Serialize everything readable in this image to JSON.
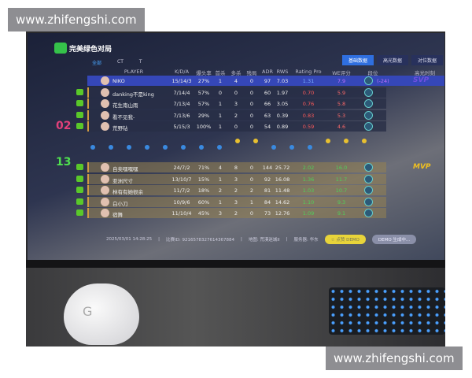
{
  "watermark": "www.zhifengshi.com",
  "logo": "完美绿色对局",
  "filters": [
    "全部",
    "CT",
    "T"
  ],
  "tabs": [
    "基础数据",
    "高光数据",
    "对位数据"
  ],
  "columns": [
    "PLAYER",
    "K/D/A",
    "爆头率",
    "首杀",
    "多杀",
    "残局",
    "ADR",
    "RWS",
    "Rating Pro",
    "WE评分",
    "段位",
    "高光时刻"
  ],
  "team1_score": "02",
  "team2_score": "13",
  "team1": [
    {
      "name": "NIKO",
      "kda": "15/14/3",
      "hs": "27%",
      "fk": "1",
      "mk": "4",
      "cl": "0",
      "adr": "97",
      "rws": "7.03",
      "rating": "1.31",
      "we": "7.9",
      "rank_delta": "(-24)",
      "highlight": "SVP"
    },
    {
      "name": "danking不是king",
      "kda": "7/14/4",
      "hs": "57%",
      "fk": "0",
      "mk": "0",
      "cl": "0",
      "adr": "60",
      "rws": "1.97",
      "rating": "0.70",
      "we": "5.9",
      "rank_delta": "",
      "highlight": ""
    },
    {
      "name": "花生南山雨",
      "kda": "7/13/4",
      "hs": "57%",
      "fk": "1",
      "mk": "3",
      "cl": "0",
      "adr": "66",
      "rws": "3.05",
      "rating": "0.76",
      "we": "5.8",
      "rank_delta": "",
      "highlight": ""
    },
    {
      "name": "看不见我-",
      "kda": "7/13/6",
      "hs": "29%",
      "fk": "1",
      "mk": "2",
      "cl": "0",
      "adr": "63",
      "rws": "0.39",
      "rating": "0.83",
      "we": "5.3",
      "rank_delta": "",
      "highlight": ""
    },
    {
      "name": "荒野钻",
      "kda": "5/15/3",
      "hs": "100%",
      "fk": "1",
      "mk": "0",
      "cl": "0",
      "adr": "54",
      "rws": "0.89",
      "rating": "0.59",
      "we": "4.6",
      "rank_delta": "",
      "highlight": ""
    }
  ],
  "team2": [
    {
      "name": "自卖嘿嘿嘿",
      "kda": "24/7/2",
      "hs": "71%",
      "fk": "4",
      "mk": "8",
      "cl": "0",
      "adr": "144",
      "rws": "25.72",
      "rating": "2.02",
      "we": "16.0",
      "highlight": "MVP"
    },
    {
      "name": "亚洲尺寸",
      "kda": "13/10/7",
      "hs": "15%",
      "fk": "1",
      "mk": "3",
      "cl": "0",
      "adr": "92",
      "rws": "16.08",
      "rating": "1.36",
      "we": "11.7",
      "highlight": ""
    },
    {
      "name": "林有有她很余",
      "kda": "11/7/2",
      "hs": "18%",
      "fk": "2",
      "mk": "2",
      "cl": "2",
      "adr": "81",
      "rws": "11.48",
      "rating": "1.03",
      "we": "10.7",
      "highlight": ""
    },
    {
      "name": "白小刀",
      "kda": "10/9/6",
      "hs": "60%",
      "fk": "1",
      "mk": "3",
      "cl": "1",
      "adr": "84",
      "rws": "14.62",
      "rating": "1.10",
      "we": "9.3",
      "highlight": ""
    },
    {
      "name": "宿舞",
      "kda": "11/10/4",
      "hs": "45%",
      "fk": "3",
      "mk": "2",
      "cl": "0",
      "adr": "73",
      "rws": "12.76",
      "rating": "1.09",
      "we": "9.1",
      "highlight": ""
    }
  ],
  "footer": {
    "time": "2025/03/01 14:28:25",
    "match_id": "比赛ID: 9216578327614367884",
    "map": "地图: 荒漠迷城II",
    "server": "服务器: 华东",
    "like_demo": "☆ 点赞 DEMO",
    "demo_status": "DEMO 生成中..."
  },
  "colors": {
    "team1_rating": "#ff5a5a",
    "team2_rating": "#4fd05a",
    "self_row": "#3547b8",
    "win": "#4fe04f",
    "lose": "#e0407a"
  }
}
